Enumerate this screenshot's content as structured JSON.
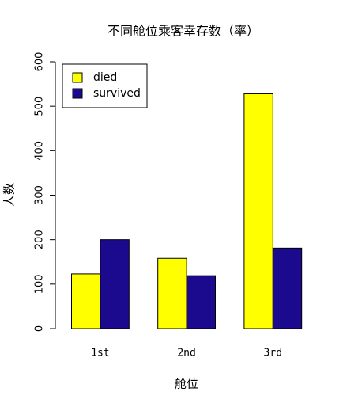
{
  "chart_data": {
    "type": "bar",
    "title": "不同舱位乘客幸存数（率）",
    "x_label": "舱位",
    "y_label": "人数",
    "categories": [
      "1st",
      "2nd",
      "3rd"
    ],
    "series": [
      {
        "name": "died",
        "color": "#ffff00",
        "values": [
          123,
          158,
          528
        ]
      },
      {
        "name": "survived",
        "color": "#1c0a8e",
        "values": [
          200,
          119,
          181
        ]
      }
    ],
    "ylim": [
      0,
      600
    ],
    "yticks": [
      0,
      100,
      200,
      300,
      400,
      500,
      600
    ],
    "grid": false,
    "legend": "topleft"
  }
}
